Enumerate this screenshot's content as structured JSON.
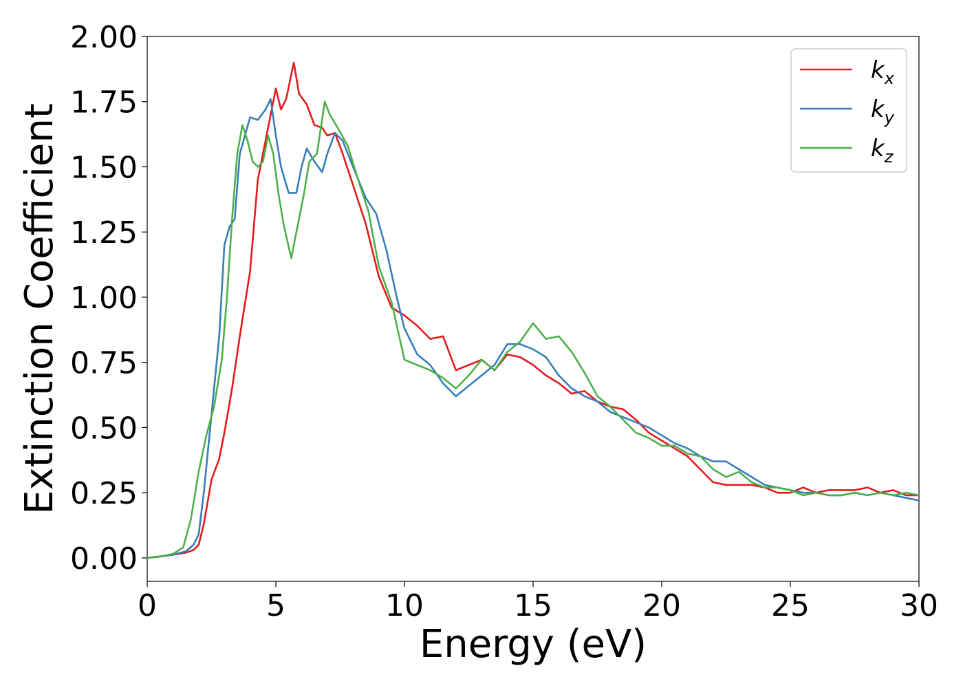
{
  "chart_data": {
    "type": "line",
    "title": "",
    "xlabel": "Energy (eV)",
    "ylabel": "Extinction Coefficient",
    "xlim": [
      0,
      30
    ],
    "ylim": [
      -0.09,
      2.0
    ],
    "xticks": [
      0,
      5,
      10,
      15,
      20,
      25,
      30
    ],
    "xtick_labels": [
      "0",
      "5",
      "10",
      "15",
      "20",
      "25",
      "30"
    ],
    "yticks": [
      0,
      0.25,
      0.5,
      0.75,
      1.0,
      1.25,
      1.5,
      1.75,
      2.0
    ],
    "ytick_labels": [
      "0.00",
      "0.25",
      "0.50",
      "0.75",
      "1.00",
      "1.25",
      "1.50",
      "1.75",
      "2.00"
    ],
    "grid": false,
    "legend_position": "top-right",
    "series": [
      {
        "name": "k",
        "subscript": "x",
        "color": "#e41a1c",
        "x": [
          0,
          0.5,
          1,
          1.5,
          1.8,
          2,
          2.2,
          2.5,
          2.8,
          3,
          3.3,
          3.6,
          4,
          4.3,
          4.6,
          4.8,
          5,
          5.2,
          5.4,
          5.7,
          5.9,
          6.2,
          6.5,
          6.8,
          7,
          7.3,
          7.6,
          8,
          8.5,
          9,
          9.5,
          10,
          10.5,
          11,
          11.5,
          12,
          12.5,
          13,
          13.5,
          14,
          14.5,
          15,
          15.5,
          16,
          16.5,
          17,
          17.5,
          18,
          18.5,
          19,
          19.5,
          20,
          20.5,
          21,
          21.5,
          22,
          22.5,
          23,
          23.5,
          24,
          24.5,
          25,
          25.5,
          26,
          26.5,
          27,
          27.5,
          28,
          28.5,
          29,
          29.5,
          30
        ],
        "values": [
          0,
          0.005,
          0.012,
          0.02,
          0.03,
          0.05,
          0.13,
          0.3,
          0.38,
          0.48,
          0.65,
          0.85,
          1.1,
          1.45,
          1.6,
          1.7,
          1.8,
          1.72,
          1.76,
          1.9,
          1.78,
          1.74,
          1.66,
          1.65,
          1.62,
          1.63,
          1.55,
          1.43,
          1.28,
          1.08,
          0.96,
          0.93,
          0.89,
          0.84,
          0.85,
          0.72,
          0.74,
          0.76,
          0.72,
          0.78,
          0.77,
          0.74,
          0.7,
          0.67,
          0.63,
          0.64,
          0.6,
          0.58,
          0.57,
          0.53,
          0.48,
          0.45,
          0.42,
          0.39,
          0.34,
          0.29,
          0.28,
          0.28,
          0.28,
          0.27,
          0.25,
          0.25,
          0.27,
          0.25,
          0.26,
          0.26,
          0.26,
          0.27,
          0.25,
          0.26,
          0.24,
          0.24
        ]
      },
      {
        "name": "k",
        "subscript": "y",
        "color": "#377eb8",
        "x": [
          0,
          0.5,
          1,
          1.5,
          1.8,
          2,
          2.2,
          2.5,
          2.8,
          3,
          3.2,
          3.4,
          3.6,
          4,
          4.3,
          4.6,
          4.8,
          5,
          5.2,
          5.5,
          5.8,
          6,
          6.2,
          6.5,
          6.8,
          7,
          7.3,
          7.6,
          8,
          8.5,
          8.9,
          9.3,
          9.7,
          10,
          10.5,
          11,
          11.5,
          12,
          12.5,
          13,
          13.5,
          14,
          14.5,
          15,
          15.5,
          16,
          16.5,
          17,
          17.5,
          18,
          18.5,
          19,
          19.5,
          20,
          20.5,
          21,
          21.5,
          22,
          22.5,
          23,
          23.5,
          24,
          24.5,
          25,
          25.5,
          26,
          26.5,
          27,
          27.5,
          28,
          28.5,
          29,
          29.5,
          30
        ],
        "values": [
          0,
          0.005,
          0.012,
          0.025,
          0.05,
          0.09,
          0.25,
          0.55,
          0.85,
          1.2,
          1.27,
          1.3,
          1.55,
          1.69,
          1.68,
          1.72,
          1.76,
          1.62,
          1.5,
          1.4,
          1.4,
          1.5,
          1.57,
          1.52,
          1.48,
          1.55,
          1.63,
          1.6,
          1.5,
          1.38,
          1.32,
          1.18,
          1.0,
          0.88,
          0.78,
          0.74,
          0.67,
          0.62,
          0.66,
          0.7,
          0.74,
          0.82,
          0.82,
          0.8,
          0.77,
          0.7,
          0.65,
          0.62,
          0.6,
          0.56,
          0.54,
          0.52,
          0.5,
          0.47,
          0.44,
          0.42,
          0.39,
          0.37,
          0.37,
          0.34,
          0.31,
          0.28,
          0.27,
          0.26,
          0.25,
          0.25,
          0.24,
          0.24,
          0.25,
          0.24,
          0.25,
          0.24,
          0.23,
          0.22
        ]
      },
      {
        "name": "k",
        "subscript": "z",
        "color": "#4daf4a",
        "x": [
          0,
          0.5,
          1,
          1.4,
          1.7,
          2,
          2.3,
          2.6,
          2.9,
          3.1,
          3.3,
          3.5,
          3.7,
          3.9,
          4.1,
          4.3,
          4.5,
          4.7,
          4.9,
          5.1,
          5.3,
          5.6,
          5.9,
          6.1,
          6.3,
          6.6,
          6.9,
          7.1,
          7.4,
          7.8,
          8.2,
          8.6,
          9,
          9.5,
          10,
          10.5,
          11,
          11.5,
          12,
          12.5,
          13,
          13.5,
          14,
          14.5,
          15,
          15.5,
          16,
          16.5,
          17,
          17.5,
          18,
          18.5,
          19,
          19.5,
          20,
          20.5,
          21,
          21.5,
          22,
          22.5,
          23,
          23.5,
          24,
          24.5,
          25,
          25.5,
          26,
          26.5,
          27,
          27.5,
          28,
          28.5,
          29,
          29.5,
          30
        ],
        "values": [
          0,
          0.006,
          0.015,
          0.04,
          0.15,
          0.33,
          0.47,
          0.58,
          0.76,
          1.0,
          1.3,
          1.55,
          1.66,
          1.6,
          1.52,
          1.5,
          1.52,
          1.62,
          1.55,
          1.4,
          1.28,
          1.15,
          1.3,
          1.4,
          1.52,
          1.55,
          1.75,
          1.7,
          1.65,
          1.58,
          1.45,
          1.33,
          1.12,
          0.98,
          0.76,
          0.74,
          0.72,
          0.69,
          0.65,
          0.7,
          0.76,
          0.72,
          0.79,
          0.83,
          0.9,
          0.84,
          0.85,
          0.79,
          0.71,
          0.62,
          0.58,
          0.53,
          0.48,
          0.46,
          0.43,
          0.43,
          0.4,
          0.39,
          0.34,
          0.31,
          0.33,
          0.29,
          0.27,
          0.27,
          0.26,
          0.24,
          0.25,
          0.24,
          0.24,
          0.25,
          0.24,
          0.25,
          0.24,
          0.25,
          0.24
        ]
      }
    ]
  }
}
